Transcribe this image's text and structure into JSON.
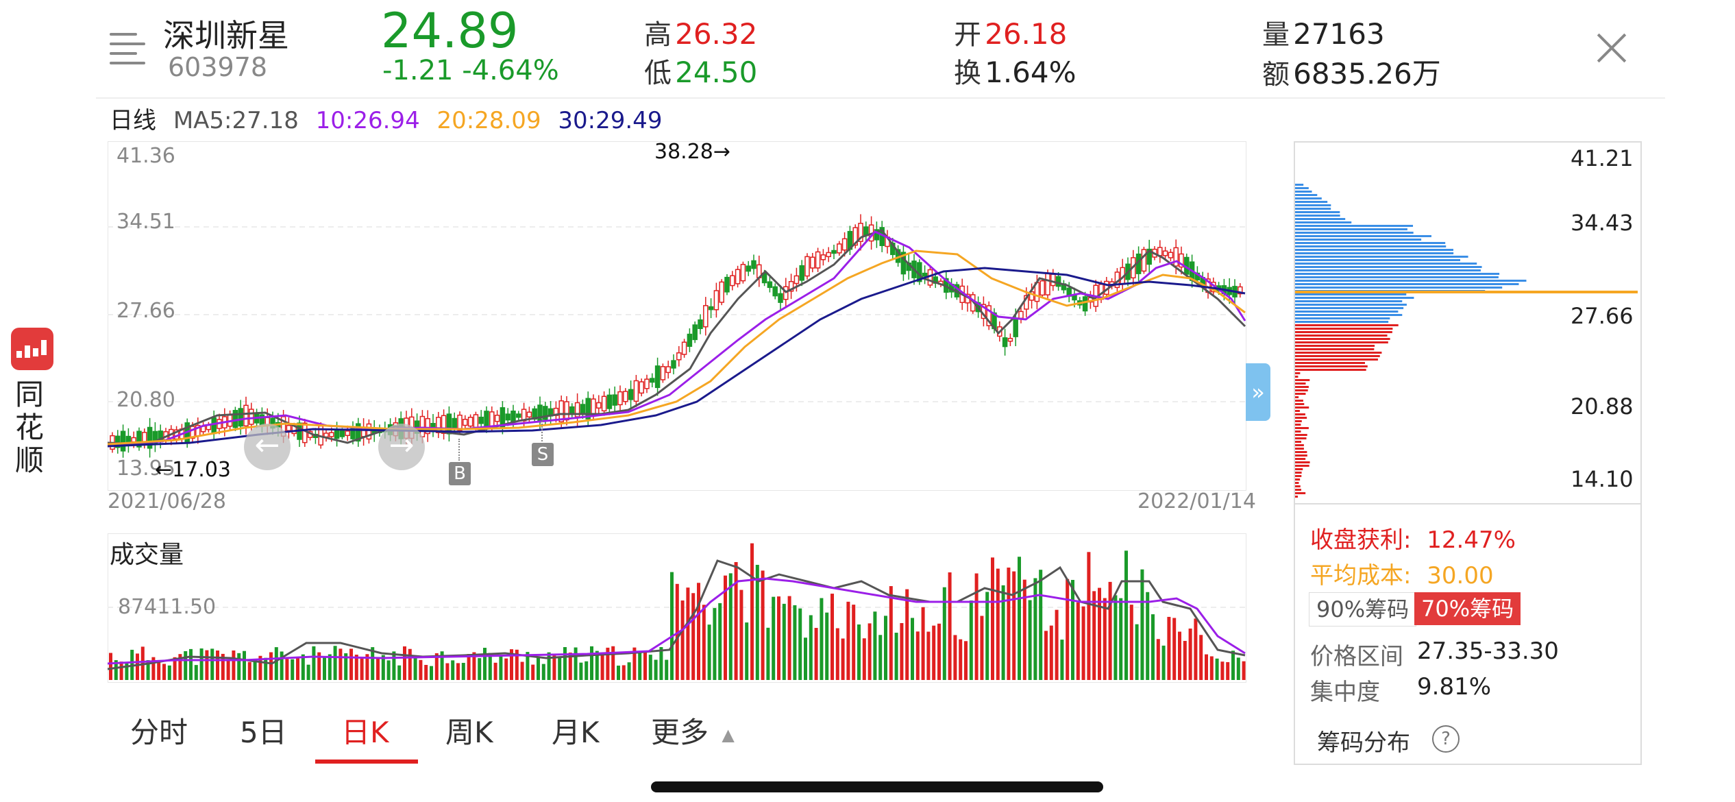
{
  "header": {
    "name": "深圳新星",
    "code": "603978",
    "price": "24.89",
    "change": "-1.21  -4.64%",
    "high_label": "高",
    "high": "26.32",
    "low_label": "低",
    "low": "24.50",
    "open_label": "开",
    "open": "26.18",
    "turnover_label": "换",
    "turnover": "1.64%",
    "volume_label": "量",
    "volume": "27163",
    "amount_label": "额",
    "amount": "6835.26万"
  },
  "ma": {
    "period": "日线",
    "ma5": "MA5:27.18",
    "ma10": "10:26.94",
    "ma20": "20:28.09",
    "ma30": "30:29.49"
  },
  "app": {
    "name": "同花顺"
  },
  "kline": {
    "y_ticks": [
      "41.36",
      "34.51",
      "27.66",
      "20.80",
      "13.95"
    ],
    "max_marker": "38.28→",
    "min_marker": "←17.03",
    "buy_tag": "B",
    "sell_tag": "S",
    "date_start": "2021/06/28",
    "date_end": "2022/01/14",
    "expand_glyph": "»"
  },
  "volume": {
    "title": "成交量",
    "tick": "87411.50"
  },
  "chip": {
    "y_ticks": [
      "41.21",
      "34.43",
      "27.66",
      "20.88",
      "14.10"
    ],
    "profit_label": "收盘获利:",
    "profit": "12.47%",
    "avg_cost_label": "平均成本:",
    "avg_cost": "30.00",
    "tab_90": "90%筹码",
    "tab_70": "70%筹码",
    "range_label": "价格区间",
    "range": "27.35-33.30",
    "concentration_label": "集中度",
    "concentration": "9.81%",
    "footer_label": "筹码分布",
    "help_glyph": "?"
  },
  "tabs": [
    "分时",
    "5日",
    "日K",
    "周K",
    "月K",
    "更多"
  ],
  "active_tab": "日K",
  "colors": {
    "up": "#e02020",
    "down": "#1a9a2a",
    "ma5": "#555555",
    "ma10": "#9b1fe8",
    "ma20": "#f5a623",
    "ma30": "#1a1a8c",
    "chip_profit": "#e02020",
    "chip_loss": "#3a8ee6"
  }
}
